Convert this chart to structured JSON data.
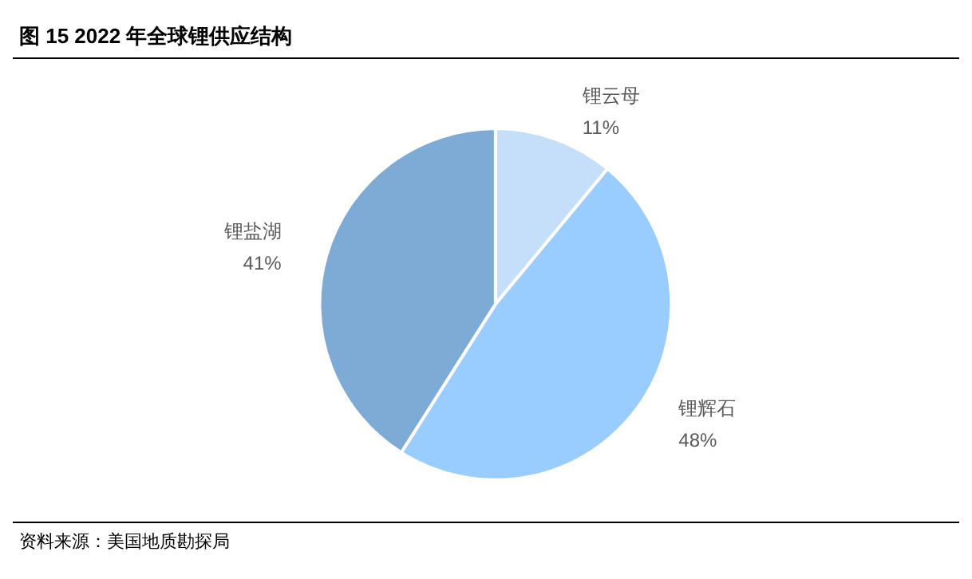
{
  "chart_data": {
    "type": "pie",
    "title": "图 15  2022 年全球锂供应结构",
    "categories": [
      "锂云母",
      "锂辉石",
      "锂盐湖"
    ],
    "values": [
      11,
      48,
      41
    ],
    "value_labels": [
      "11%",
      "48%",
      "41%"
    ],
    "colors": [
      "#c5dffb",
      "#99ccff",
      "#7eaad6"
    ],
    "legend": false,
    "annotations": [
      "资料来源：美国地质勘探局"
    ]
  }
}
